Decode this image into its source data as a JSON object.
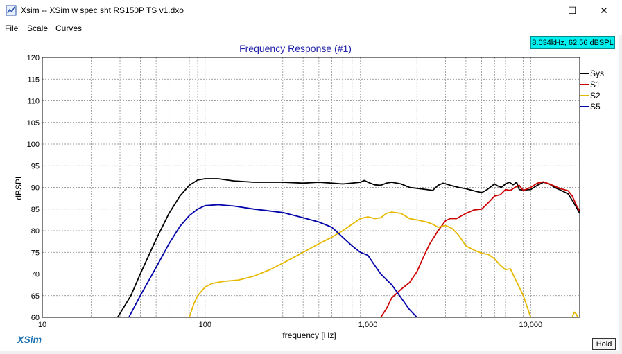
{
  "window": {
    "title": "Xsim -- XSim w spec sht RS150P TS v1.dxo",
    "minimize_glyph": "—",
    "maximize_glyph": "☐",
    "close_glyph": "✕"
  },
  "menu": [
    "File",
    "Scale",
    "Curves"
  ],
  "readout": "8.034kHz, 62.56 dBSPL",
  "brand": "XSim",
  "hold_label": "Hold",
  "chart_data": {
    "type": "line",
    "title": "Frequency Response (#1)",
    "xlabel": "frequency [Hz]",
    "ylabel": "dBSPL",
    "xscale": "log",
    "xlim": [
      10,
      20000
    ],
    "ylim": [
      60,
      120
    ],
    "x_ticks": [
      10,
      100,
      1000,
      10000
    ],
    "x_tick_labels": [
      "10",
      "100",
      "1,000",
      "10,000"
    ],
    "y_ticks": [
      60,
      65,
      70,
      75,
      80,
      85,
      90,
      95,
      100,
      105,
      110,
      115,
      120
    ],
    "grid": true,
    "legend_position": "right",
    "colors": {
      "title": "#2222aa",
      "grid": "#808080"
    },
    "series": [
      {
        "name": "Sys",
        "color": "#000000",
        "points": [
          [
            29,
            60
          ],
          [
            35,
            65
          ],
          [
            40,
            70
          ],
          [
            50,
            78
          ],
          [
            60,
            84
          ],
          [
            70,
            88
          ],
          [
            80,
            90.5
          ],
          [
            90,
            91.7
          ],
          [
            100,
            92
          ],
          [
            120,
            92
          ],
          [
            150,
            91.5
          ],
          [
            200,
            91.2
          ],
          [
            300,
            91.2
          ],
          [
            400,
            91
          ],
          [
            500,
            91.2
          ],
          [
            600,
            91
          ],
          [
            700,
            90.8
          ],
          [
            800,
            91
          ],
          [
            900,
            91.2
          ],
          [
            950,
            91.6
          ],
          [
            1000,
            91.2
          ],
          [
            1100,
            90.6
          ],
          [
            1200,
            90.5
          ],
          [
            1300,
            91
          ],
          [
            1400,
            91.2
          ],
          [
            1600,
            90.8
          ],
          [
            1800,
            90
          ],
          [
            2000,
            89.8
          ],
          [
            2300,
            89.5
          ],
          [
            2500,
            89.3
          ],
          [
            2700,
            90.5
          ],
          [
            2900,
            91
          ],
          [
            3200,
            90.5
          ],
          [
            3600,
            90
          ],
          [
            4000,
            89.7
          ],
          [
            4500,
            89.2
          ],
          [
            5000,
            88.8
          ],
          [
            5400,
            89.5
          ],
          [
            6000,
            90.8
          ],
          [
            6300,
            90.3
          ],
          [
            6600,
            90
          ],
          [
            7000,
            90.8
          ],
          [
            7400,
            91.2
          ],
          [
            7800,
            90.6
          ],
          [
            8200,
            91.2
          ],
          [
            8500,
            89.5
          ],
          [
            9000,
            89.4
          ],
          [
            10000,
            89.5
          ],
          [
            11000,
            90.5
          ],
          [
            12000,
            91.2
          ],
          [
            13000,
            90.8
          ],
          [
            14000,
            90
          ],
          [
            15000,
            89.5
          ],
          [
            16000,
            89
          ],
          [
            17000,
            88.5
          ],
          [
            18000,
            87
          ],
          [
            19000,
            85.5
          ],
          [
            20000,
            84
          ]
        ]
      },
      {
        "name": "S1",
        "color": "#cc0000",
        "points": [
          [
            1200,
            60
          ],
          [
            1300,
            62
          ],
          [
            1400,
            64.5
          ],
          [
            1600,
            66.5
          ],
          [
            1800,
            68
          ],
          [
            2000,
            70.5
          ],
          [
            2200,
            74
          ],
          [
            2400,
            77
          ],
          [
            2700,
            80
          ],
          [
            3000,
            82.3
          ],
          [
            3200,
            82.8
          ],
          [
            3500,
            82.8
          ],
          [
            4000,
            84
          ],
          [
            4500,
            84.8
          ],
          [
            5000,
            85
          ],
          [
            5500,
            86.5
          ],
          [
            6000,
            88
          ],
          [
            6500,
            88.3
          ],
          [
            7000,
            89.5
          ],
          [
            7500,
            89.3
          ],
          [
            8000,
            90
          ],
          [
            8500,
            90.5
          ],
          [
            9000,
            89.3
          ],
          [
            10000,
            90
          ],
          [
            11000,
            91
          ],
          [
            12000,
            91.3
          ],
          [
            13000,
            90.8
          ],
          [
            14000,
            90.3
          ],
          [
            15000,
            89.8
          ],
          [
            16000,
            89.5
          ],
          [
            17000,
            89.2
          ],
          [
            18000,
            88
          ],
          [
            19000,
            86
          ],
          [
            20000,
            84.5
          ]
        ]
      },
      {
        "name": "S2",
        "color": "#e6b800",
        "points": [
          [
            80,
            60
          ],
          [
            85,
            63
          ],
          [
            90,
            65
          ],
          [
            100,
            67
          ],
          [
            110,
            67.8
          ],
          [
            130,
            68.3
          ],
          [
            160,
            68.6
          ],
          [
            200,
            69.5
          ],
          [
            250,
            71
          ],
          [
            300,
            72.5
          ],
          [
            400,
            75
          ],
          [
            500,
            77
          ],
          [
            600,
            78.5
          ],
          [
            700,
            80
          ],
          [
            800,
            81.5
          ],
          [
            900,
            82.8
          ],
          [
            1000,
            83.2
          ],
          [
            1100,
            82.8
          ],
          [
            1200,
            83
          ],
          [
            1300,
            84
          ],
          [
            1400,
            84.3
          ],
          [
            1600,
            84
          ],
          [
            1800,
            82.8
          ],
          [
            2000,
            82.5
          ],
          [
            2300,
            82
          ],
          [
            2500,
            81.5
          ],
          [
            2700,
            80.8
          ],
          [
            3000,
            81.2
          ],
          [
            3300,
            80.5
          ],
          [
            3600,
            79
          ],
          [
            4000,
            76.5
          ],
          [
            4500,
            75.5
          ],
          [
            5000,
            74.8
          ],
          [
            5500,
            74.5
          ],
          [
            6000,
            73.5
          ],
          [
            6500,
            72
          ],
          [
            7000,
            71
          ],
          [
            7500,
            71.2
          ],
          [
            8000,
            69
          ],
          [
            8500,
            67
          ],
          [
            9000,
            65
          ],
          [
            9500,
            62.5
          ],
          [
            10000,
            60
          ],
          [
            18000,
            60
          ],
          [
            18500,
            61.2
          ],
          [
            19000,
            60.8
          ],
          [
            19500,
            60
          ]
        ]
      },
      {
        "name": "S5",
        "color": "#0000aa",
        "points": [
          [
            34,
            60
          ],
          [
            40,
            65
          ],
          [
            50,
            71.5
          ],
          [
            60,
            77
          ],
          [
            70,
            81
          ],
          [
            80,
            83.5
          ],
          [
            90,
            85
          ],
          [
            100,
            85.8
          ],
          [
            120,
            86
          ],
          [
            150,
            85.7
          ],
          [
            200,
            85
          ],
          [
            300,
            84.2
          ],
          [
            400,
            83
          ],
          [
            500,
            82
          ],
          [
            600,
            80.8
          ],
          [
            700,
            78.5
          ],
          [
            800,
            76.5
          ],
          [
            900,
            75
          ],
          [
            1000,
            74.3
          ],
          [
            1100,
            72
          ],
          [
            1200,
            70
          ],
          [
            1400,
            67.5
          ],
          [
            1600,
            64.5
          ],
          [
            1800,
            61.8
          ],
          [
            2000,
            60
          ]
        ]
      }
    ]
  }
}
